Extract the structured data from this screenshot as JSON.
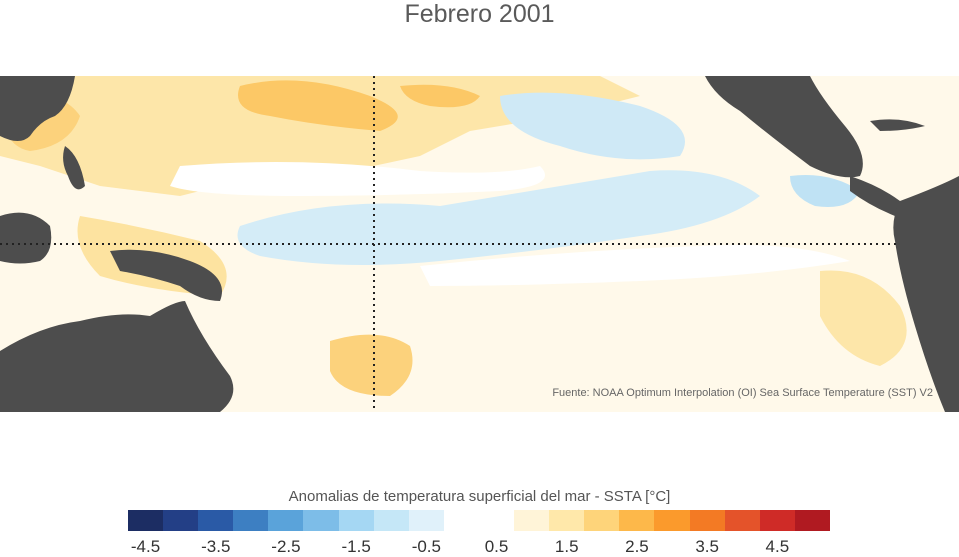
{
  "title": "Febrero 2001",
  "source": "Fuente: NOAA Optimum Interpolation (OI) Sea Surface Temperature (SST) V2",
  "colorbar": {
    "title": "Anomalias de temperatura superficial del mar - SSTA  [°C]",
    "tick_labels": [
      "-4.5",
      "-3.5",
      "-2.5",
      "-1.5",
      "-0.5",
      "0.5",
      "1.5",
      "2.5",
      "3.5",
      "4.5"
    ],
    "colors": [
      "#1c2d63",
      "#233f86",
      "#2a5aa6",
      "#3d7fc2",
      "#5aa3da",
      "#7dbde8",
      "#a5d7f3",
      "#c5e7f7",
      "#e0f1fa",
      "#ffffff",
      "#ffffff",
      "#fff4d8",
      "#ffe8aa",
      "#fed47a",
      "#fdb84a",
      "#fb9a2c",
      "#f37a24",
      "#e4532a",
      "#cf2b27",
      "#b01a21"
    ]
  },
  "map": {
    "land_color": "#4d4d4d",
    "reference_lines": "dotted"
  }
}
